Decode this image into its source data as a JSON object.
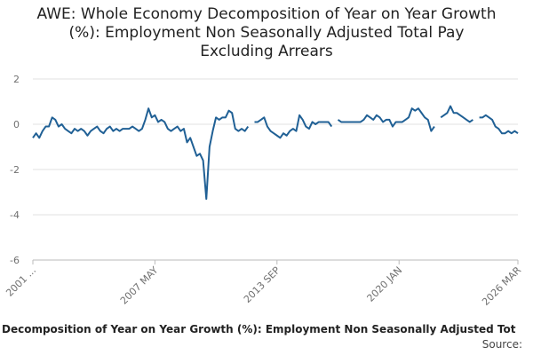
{
  "chart_data": {
    "type": "line",
    "title": "AWE: Whole Economy Decomposition of Year on Year Growth (%): Employment Non Seasonally Adjusted Total Pay Excluding Arrears",
    "footer": "Decomposition of Year on Year Growth (%): Employment Non Seasonally Adjusted Tot",
    "source": "Source:",
    "categories": [
      "2001 ...",
      null,
      null,
      null,
      null,
      null,
      null,
      null,
      null,
      null,
      null,
      null,
      null,
      null,
      null,
      null,
      null,
      null,
      null,
      null,
      null,
      null,
      null,
      null,
      null,
      null,
      null,
      null,
      null,
      null,
      null,
      null,
      null,
      null,
      null,
      null,
      null,
      null,
      "2007 MAY",
      null,
      null,
      null,
      null,
      null,
      null,
      null,
      null,
      null,
      null,
      null,
      null,
      null,
      null,
      null,
      null,
      null,
      null,
      null,
      null,
      null,
      null,
      null,
      null,
      null,
      null,
      null,
      null,
      null,
      null,
      null,
      null,
      null,
      null,
      null,
      null,
      null,
      "2013 SEP",
      null,
      null,
      null,
      null,
      null,
      null,
      null,
      null,
      null,
      null,
      null,
      null,
      null,
      null,
      null,
      null,
      null,
      null,
      null,
      null,
      null,
      null,
      null,
      null,
      null,
      null,
      null,
      null,
      null,
      null,
      null,
      null,
      null,
      null,
      null,
      null,
      null,
      "2020 JAN",
      null,
      null,
      null,
      null,
      null,
      null,
      null,
      null,
      null,
      null,
      null,
      null,
      null,
      null,
      null,
      null,
      null,
      null,
      null,
      null,
      null,
      null,
      null,
      null,
      null,
      null,
      null,
      null,
      null,
      null,
      null,
      null,
      null,
      null,
      null,
      null,
      "2026 MAR"
    ],
    "series": [
      {
        "name": "AWE",
        "color": "#206095",
        "values": [
          -0.6,
          -0.4,
          -0.6,
          -0.3,
          -0.1,
          -0.1,
          0.3,
          0.2,
          -0.1,
          0,
          -0.2,
          -0.3,
          -0.4,
          -0.2,
          -0.3,
          -0.2,
          -0.3,
          -0.5,
          -0.3,
          -0.2,
          -0.1,
          -0.3,
          -0.4,
          -0.2,
          -0.1,
          -0.3,
          -0.2,
          -0.3,
          -0.2,
          -0.2,
          -0.2,
          -0.1,
          -0.2,
          -0.3,
          -0.2,
          0.2,
          0.7,
          0.3,
          0.4,
          0.1,
          0.2,
          0.1,
          -0.2,
          -0.3,
          -0.2,
          -0.1,
          -0.3,
          -0.2,
          -0.8,
          -0.6,
          -1.0,
          -1.4,
          -1.3,
          -1.6,
          -3.3,
          -1.0,
          -0.3,
          0.3,
          0.2,
          0.3,
          0.3,
          0.6,
          0.5,
          -0.2,
          -0.3,
          -0.2,
          -0.3,
          -0.1,
          null,
          0.1,
          0.1,
          0.2,
          0.3,
          -0.1,
          -0.3,
          -0.4,
          -0.5,
          -0.6,
          -0.4,
          -0.5,
          -0.3,
          -0.2,
          -0.3,
          0.4,
          0.2,
          -0.1,
          -0.2,
          0.1,
          0.0,
          0.1,
          0.1,
          0.1,
          0.1,
          -0.1,
          null,
          0.2,
          0.1,
          0.1,
          0.1,
          0.1,
          0.1,
          0.1,
          0.1,
          0.2,
          0.4,
          0.3,
          0.2,
          0.4,
          0.3,
          0.1,
          0.2,
          0.2,
          -0.1,
          0.1,
          0.1,
          0.1,
          0.2,
          0.3,
          0.7,
          0.6,
          0.7,
          0.5,
          0.3,
          0.2,
          -0.3,
          -0.1,
          null,
          0.3,
          0.4,
          0.5,
          0.8,
          0.5,
          0.5,
          0.4,
          0.3,
          0.2,
          0.1,
          0.2,
          null,
          0.3,
          0.3,
          0.4,
          0.3,
          0.2,
          -0.1,
          -0.2,
          -0.4,
          -0.4,
          -0.3,
          -0.4,
          -0.3,
          -0.4
        ]
      }
    ],
    "ylim": [
      -6,
      2
    ],
    "yticks": [
      2,
      0,
      -2,
      -4,
      -6
    ],
    "grid": true
  }
}
